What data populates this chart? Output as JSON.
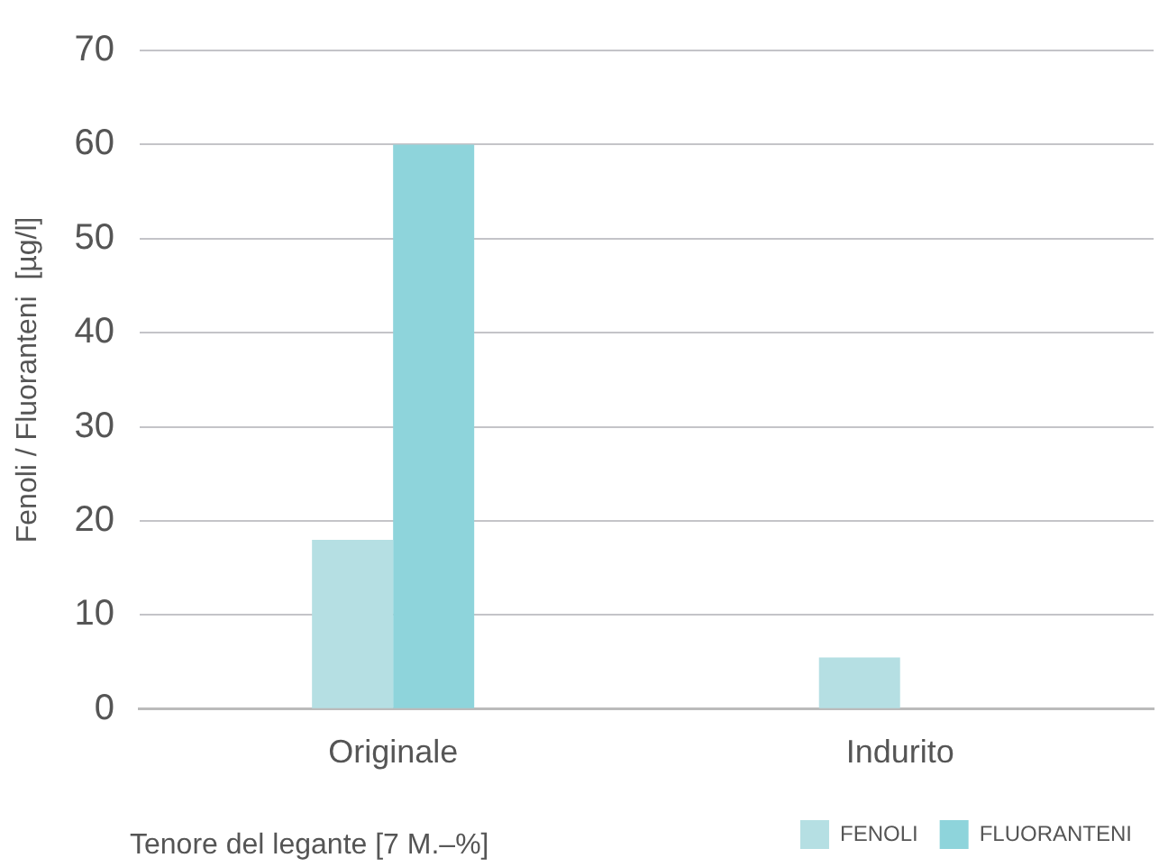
{
  "chart_data": {
    "type": "bar",
    "xlabel": "Tenore del legante [7 M.–%]",
    "ylabel": "Fenoli / Fluoranteni  [µg/l]",
    "categories": [
      "Originale",
      "Indurito"
    ],
    "series": [
      {
        "name": "FENOLI",
        "color": "#b5dfe3",
        "values": [
          18,
          5.5
        ]
      },
      {
        "name": "FLUORANTENI",
        "color": "#8ed4db",
        "values": [
          60,
          0
        ]
      }
    ],
    "ylim": [
      0,
      70
    ],
    "yticks": [
      0,
      10,
      20,
      30,
      40,
      50,
      60,
      70
    ],
    "grid": "y",
    "legend": "bottom right"
  }
}
